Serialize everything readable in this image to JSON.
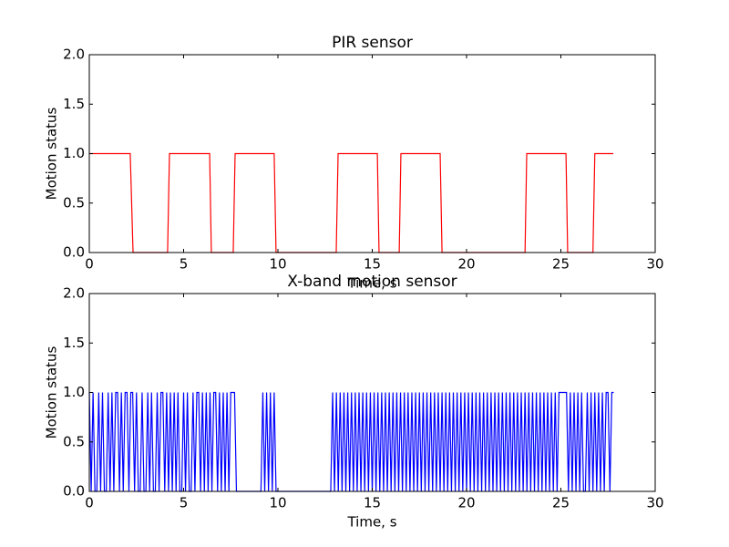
{
  "chart_data": [
    {
      "type": "line",
      "title": "PIR sensor",
      "x_label": "Time, s",
      "y_label": "Motion status",
      "color": "#ff0000",
      "x": [
        0,
        2.17,
        2.32,
        4.15,
        4.25,
        6.38,
        6.47,
        7.63,
        7.73,
        9.8,
        9.9,
        13.09,
        13.19,
        15.27,
        15.36,
        16.43,
        16.52,
        18.6,
        18.7,
        23.1,
        23.19,
        25.27,
        25.36,
        26.7,
        26.8,
        27.78
      ],
      "values": [
        1,
        1,
        0,
        0,
        1,
        1,
        0,
        0,
        1,
        1,
        0,
        0,
        1,
        1,
        0,
        0,
        1,
        1,
        0,
        0,
        1,
        1,
        0,
        0,
        1,
        1
      ],
      "xlim": [
        0,
        30
      ],
      "xticks": [
        0,
        5,
        10,
        15,
        20,
        25,
        30
      ],
      "ylim": [
        0,
        2
      ],
      "yticks": [
        {
          "value": 0,
          "label": "0.0"
        },
        {
          "value": 0.5,
          "label": "0.5"
        },
        {
          "value": 1,
          "label": "1.0"
        },
        {
          "value": 1.5,
          "label": "1.5"
        },
        {
          "value": 2,
          "label": "2.0"
        }
      ]
    },
    {
      "type": "line",
      "title": "X-band motion sensor",
      "x_label": "Time, s",
      "y_label": "Motion status",
      "color": "#0000ff",
      "x": [
        0,
        0.1,
        0.2,
        0.3,
        0.4,
        0.5,
        0.6,
        0.7,
        0.8,
        0.9,
        1,
        1.1,
        1.2,
        1.3,
        1.4,
        1.5,
        1.6,
        1.7,
        1.8,
        1.9,
        2,
        2.1,
        2.2,
        2.3,
        2.4,
        2.5,
        2.6,
        2.7,
        2.8,
        2.9,
        3,
        3.1,
        3.2,
        3.3,
        3.4,
        3.5,
        3.6,
        3.7,
        3.8,
        3.9,
        4,
        4.1,
        4.2,
        4.3,
        4.4,
        4.5,
        4.6,
        4.7,
        4.8,
        4.9,
        5,
        5.1,
        5.2,
        5.3,
        5.4,
        5.5,
        5.6,
        5.7,
        5.8,
        5.9,
        6,
        6.1,
        6.2,
        6.3,
        6.4,
        6.5,
        6.6,
        6.7,
        6.8,
        6.9,
        7,
        7.1,
        7.2,
        7.3,
        7.4,
        7.5,
        7.6,
        7.7,
        7.8,
        7.9,
        8,
        8.1,
        8.2,
        8.3,
        8.4,
        8.5,
        8.6,
        8.7,
        8.8,
        8.9,
        9,
        9.1,
        9.2,
        9.3,
        9.4,
        9.5,
        9.6,
        9.7,
        9.8,
        9.9,
        10,
        10.1,
        10.2,
        10.3,
        10.4,
        10.5,
        10.6,
        10.7,
        10.8,
        10.9,
        11,
        11.1,
        11.2,
        11.3,
        11.4,
        11.5,
        11.6,
        11.7,
        11.8,
        11.9,
        12,
        12.1,
        12.2,
        12.3,
        12.4,
        12.5,
        12.6,
        12.7,
        12.8,
        12.9,
        13,
        13.1,
        13.2,
        13.3,
        13.4,
        13.5,
        13.6,
        13.7,
        13.8,
        13.9,
        14,
        14.1,
        14.2,
        14.3,
        14.4,
        14.5,
        14.6,
        14.7,
        14.8,
        14.9,
        15,
        15.1,
        15.2,
        15.3,
        15.4,
        15.5,
        15.6,
        15.7,
        15.8,
        15.9,
        16,
        16.1,
        16.2,
        16.3,
        16.4,
        16.5,
        16.6,
        16.7,
        16.8,
        16.9,
        17,
        17.1,
        17.2,
        17.3,
        17.4,
        17.5,
        17.6,
        17.7,
        17.8,
        17.9,
        18,
        18.1,
        18.2,
        18.3,
        18.4,
        18.5,
        18.6,
        18.7,
        18.8,
        18.9,
        19,
        19.1,
        19.2,
        19.3,
        19.4,
        19.5,
        19.6,
        19.7,
        19.8,
        19.9,
        20,
        20.1,
        20.2,
        20.3,
        20.4,
        20.5,
        20.6,
        20.7,
        20.8,
        20.9,
        21,
        21.1,
        21.2,
        21.3,
        21.4,
        21.5,
        21.6,
        21.7,
        21.8,
        21.9,
        22,
        22.1,
        22.2,
        22.3,
        22.4,
        22.5,
        22.6,
        22.7,
        22.8,
        22.9,
        23,
        23.1,
        23.2,
        23.3,
        23.4,
        23.5,
        23.6,
        23.7,
        23.8,
        23.9,
        24,
        24.1,
        24.2,
        24.3,
        24.4,
        24.5,
        24.6,
        24.7,
        24.8,
        24.9,
        25,
        25.1,
        25.2,
        25.3,
        25.4,
        25.5,
        25.6,
        25.7,
        25.8,
        25.9,
        26,
        26.1,
        26.2,
        26.3,
        26.4,
        26.5,
        26.6,
        26.7,
        26.8,
        26.9,
        27,
        27.1,
        27.2,
        27.3,
        27.4,
        27.5,
        27.6,
        27.7,
        27.8
      ],
      "values": [
        1,
        0,
        1,
        0,
        0,
        1,
        0,
        1,
        0,
        0,
        1,
        0,
        1,
        0,
        1,
        1,
        0,
        1,
        0,
        1,
        1,
        0,
        1,
        1,
        0,
        1,
        0,
        0,
        1,
        0,
        0,
        1,
        0,
        1,
        0,
        0,
        1,
        0,
        1,
        1,
        0,
        1,
        0,
        1,
        0,
        1,
        0,
        1,
        0,
        0,
        1,
        0,
        1,
        0,
        0,
        1,
        0,
        1,
        1,
        0,
        1,
        0,
        1,
        0,
        1,
        0,
        1,
        1,
        0,
        1,
        0,
        1,
        0,
        1,
        0,
        1,
        1,
        1,
        0,
        0,
        0,
        0,
        0,
        0,
        0,
        0,
        0,
        0,
        0,
        0,
        0,
        0,
        1,
        0,
        1,
        0,
        1,
        0,
        1,
        0,
        0,
        0,
        0,
        0,
        0,
        0,
        0,
        0,
        0,
        0,
        0,
        0,
        0,
        0,
        0,
        0,
        0,
        0,
        0,
        0,
        0,
        0,
        0,
        0,
        0,
        0,
        0,
        0,
        0,
        1,
        0,
        1,
        0,
        1,
        0,
        1,
        0,
        1,
        0,
        1,
        0,
        1,
        0,
        1,
        0,
        1,
        0,
        1,
        0,
        1,
        0,
        1,
        0,
        1,
        0,
        1,
        0,
        1,
        0,
        1,
        0,
        1,
        0,
        1,
        0,
        1,
        0,
        1,
        0,
        1,
        0,
        1,
        0,
        1,
        0,
        1,
        0,
        1,
        0,
        1,
        0,
        1,
        0,
        1,
        0,
        1,
        0,
        1,
        0,
        1,
        0,
        1,
        0,
        1,
        0,
        1,
        0,
        1,
        0,
        1,
        0,
        1,
        0,
        1,
        0,
        1,
        0,
        1,
        0,
        1,
        0,
        1,
        0,
        1,
        0,
        1,
        0,
        1,
        0,
        1,
        0,
        1,
        0,
        1,
        0,
        1,
        0,
        1,
        0,
        1,
        0,
        1,
        0,
        1,
        0,
        1,
        0,
        1,
        0,
        1,
        0,
        1,
        0,
        1,
        0,
        1,
        0,
        1,
        0,
        1,
        1,
        1,
        1,
        1,
        0,
        1,
        0,
        1,
        0,
        1,
        0,
        1,
        0,
        0,
        1,
        0,
        1,
        0,
        1,
        0,
        1,
        0,
        1,
        0,
        1,
        1,
        0,
        1,
        1
      ],
      "xlim": [
        0,
        30
      ],
      "xticks": [
        0,
        5,
        10,
        15,
        20,
        25,
        30
      ],
      "ylim": [
        0,
        2
      ],
      "yticks": [
        {
          "value": 0,
          "label": "0.0"
        },
        {
          "value": 0.5,
          "label": "0.5"
        },
        {
          "value": 1,
          "label": "1.0"
        },
        {
          "value": 1.5,
          "label": "1.5"
        },
        {
          "value": 2,
          "label": "2.0"
        }
      ]
    }
  ]
}
